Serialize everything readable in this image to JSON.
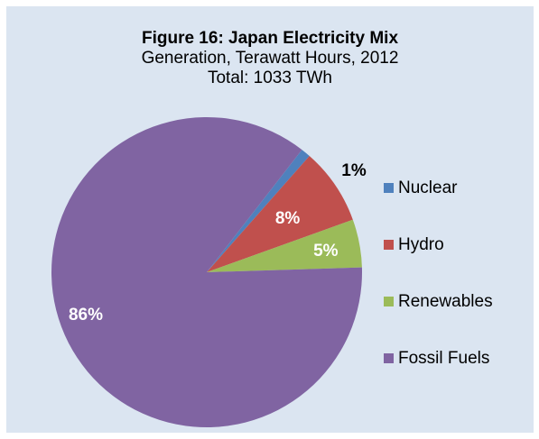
{
  "chart_data": {
    "type": "pie",
    "title": "Figure 16: Japan Electricity Mix",
    "subtitle": "Generation, Terawatt Hours, 2012",
    "total_label": "Total: 1033 TWh",
    "slices": [
      {
        "name": "Nuclear",
        "value": 1,
        "label": "1%",
        "color": "#4f81bd"
      },
      {
        "name": "Hydro",
        "value": 8,
        "label": "8%",
        "color": "#c0504d"
      },
      {
        "name": "Renewables",
        "value": 5,
        "label": "5%",
        "color": "#9bbb59"
      },
      {
        "name": "Fossil Fuels",
        "value": 86,
        "label": "86%",
        "color": "#8064a2"
      }
    ],
    "legend_position": "right",
    "background": "#dbe5f1"
  }
}
